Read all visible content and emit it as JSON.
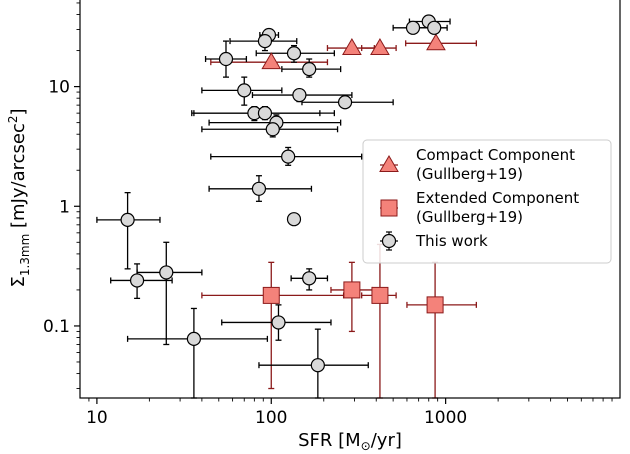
{
  "chart_data": {
    "type": "scatter",
    "x_scale": "log",
    "y_scale": "log",
    "xlabel": "SFR [M⊙/yr]",
    "ylabel": "Σ_1.3mm [mJy/arcsec^2]",
    "xlim": [
      8,
      10000
    ],
    "ylim": [
      0.025,
      55
    ],
    "x_ticks": [
      {
        "value": 10,
        "label": "10"
      },
      {
        "value": 100,
        "label": "100"
      },
      {
        "value": 1000,
        "label": "1000"
      }
    ],
    "y_ticks": [
      {
        "value": 0.1,
        "label": "0.1"
      },
      {
        "value": 1,
        "label": "1"
      },
      {
        "value": 10,
        "label": "10"
      }
    ],
    "grid": false,
    "legend": {
      "placement": "center-right",
      "entries": [
        {
          "series": "compact",
          "text": [
            "Compact Component",
            "(Gullberg+19)"
          ]
        },
        {
          "series": "extended",
          "text": [
            "Extended Component",
            "(Gullberg+19)"
          ]
        },
        {
          "series": "this_work",
          "text": [
            "This work"
          ]
        }
      ]
    },
    "series": [
      {
        "name": "Compact Component (Gullberg+19)",
        "key": "compact",
        "marker": "triangle",
        "color": "#f4827a",
        "edge": "#8b1a1a",
        "points": [
          {
            "x": 100,
            "y": 16,
            "xlo": 45,
            "xhi": 210
          },
          {
            "x": 290,
            "y": 21,
            "xlo": 210,
            "xhi": 390
          },
          {
            "x": 420,
            "y": 21,
            "xlo": 330,
            "xhi": 520
          },
          {
            "x": 880,
            "y": 23,
            "xlo": 590,
            "xhi": 1500
          }
        ]
      },
      {
        "name": "Extended Component (Gullberg+19)",
        "key": "extended",
        "marker": "square",
        "color": "#f4827a",
        "edge": "#8b1a1a",
        "points": [
          {
            "x": 100,
            "y": 0.18,
            "xlo": 40,
            "xhi": 260,
            "ylo": 0.03,
            "yhi": 0.34
          },
          {
            "x": 290,
            "y": 0.2,
            "xlo": 220,
            "xhi": 380,
            "ylo": 0.09,
            "yhi": 0.34
          },
          {
            "x": 420,
            "y": 0.18,
            "xlo": 330,
            "xhi": 520,
            "ylo": 0.02,
            "yhi": 0.48
          },
          {
            "x": 870,
            "y": 0.15,
            "xlo": 600,
            "xhi": 1500,
            "ylo": 0.02,
            "yhi": 0.34
          }
        ]
      },
      {
        "name": "This work",
        "key": "this_work",
        "marker": "circle",
        "color": "#d9d9d9",
        "edge": "#000000",
        "points": [
          {
            "x": 800,
            "y": 35,
            "xlo": 620,
            "xhi": 1060,
            "ylo": 32,
            "yhi": 38
          },
          {
            "x": 650,
            "y": 31,
            "xlo": 500,
            "xhi": 800
          },
          {
            "x": 860,
            "y": 31,
            "xlo": 700,
            "xhi": 1020
          },
          {
            "x": 97,
            "y": 27,
            "xlo": 86,
            "xhi": 110,
            "ylo": 24,
            "yhi": 30
          },
          {
            "x": 92,
            "y": 24,
            "xlo": 58,
            "xhi": 140,
            "ylo": 20,
            "yhi": 28
          },
          {
            "x": 135,
            "y": 19,
            "xlo": 82,
            "xhi": 230,
            "ylo": 16,
            "yhi": 22
          },
          {
            "x": 55,
            "y": 17,
            "xlo": 42,
            "xhi": 72,
            "ylo": 12,
            "yhi": 24
          },
          {
            "x": 165,
            "y": 14,
            "xlo": 115,
            "xhi": 250,
            "ylo": 12,
            "yhi": 17
          },
          {
            "x": 70,
            "y": 9.3,
            "xlo": 40,
            "xhi": 115,
            "ylo": 7,
            "yhi": 12
          },
          {
            "x": 145,
            "y": 8.5,
            "xlo": 78,
            "xhi": 290,
            "ylo": 7.5,
            "yhi": 9.5
          },
          {
            "x": 265,
            "y": 7.4,
            "xlo": 150,
            "xhi": 500,
            "ylo": 6.8,
            "yhi": 8.0
          },
          {
            "x": 80,
            "y": 6,
            "xlo": 35,
            "xhi": 190,
            "ylo": 5.2,
            "yhi": 6.8
          },
          {
            "x": 92,
            "y": 6,
            "xlo": 36,
            "xhi": 230,
            "ylo": 5.3,
            "yhi": 6.8
          },
          {
            "x": 107,
            "y": 5,
            "xlo": 44,
            "xhi": 250,
            "ylo": 4.3,
            "yhi": 5.8
          },
          {
            "x": 102,
            "y": 4.4,
            "xlo": 40,
            "xhi": 240,
            "ylo": 3.8,
            "yhi": 5.1
          },
          {
            "x": 125,
            "y": 2.6,
            "xlo": 45,
            "xhi": 330,
            "ylo": 2.2,
            "yhi": 3.1
          },
          {
            "x": 85,
            "y": 1.4,
            "xlo": 44,
            "xhi": 170,
            "ylo": 1.1,
            "yhi": 1.8
          },
          {
            "x": 15,
            "y": 0.77,
            "xlo": 10,
            "xhi": 23,
            "ylo": 0.3,
            "yhi": 1.3
          },
          {
            "x": 135,
            "y": 0.78,
            "xlo": 130,
            "xhi": 140,
            "ylo": 0.7,
            "yhi": 0.86
          },
          {
            "x": 25,
            "y": 0.28,
            "xlo": 17,
            "xhi": 40,
            "ylo": 0.07,
            "yhi": 0.5
          },
          {
            "x": 17,
            "y": 0.24,
            "xlo": 12,
            "xhi": 27,
            "ylo": 0.17,
            "yhi": 0.33
          },
          {
            "x": 165,
            "y": 0.25,
            "xlo": 130,
            "xhi": 210,
            "ylo": 0.2,
            "yhi": 0.3
          },
          {
            "x": 110,
            "y": 0.107,
            "xlo": 52,
            "xhi": 220,
            "ylo": 0.076,
            "yhi": 0.15
          },
          {
            "x": 36,
            "y": 0.078,
            "xlo": 15,
            "xhi": 95,
            "ylo": 0.01,
            "yhi": 0.14
          },
          {
            "x": 185,
            "y": 0.047,
            "xlo": 85,
            "xhi": 360,
            "ylo": 0.01,
            "yhi": 0.094
          }
        ]
      }
    ]
  }
}
